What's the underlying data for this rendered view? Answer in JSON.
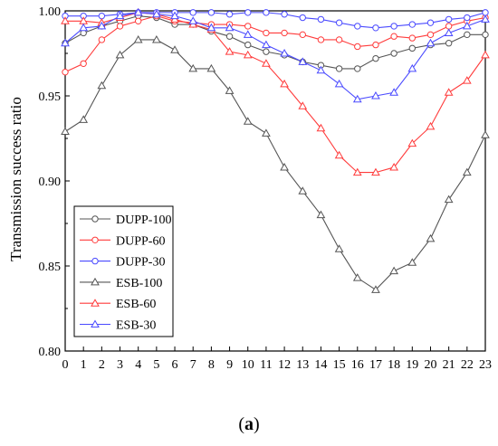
{
  "caption": {
    "open": "(",
    "letter": "a",
    "close": ")"
  },
  "chart_data": {
    "type": "line",
    "xlabel": "",
    "ylabel": "Transmission success ratio",
    "xlim": [
      0,
      23
    ],
    "ylim": [
      0.8,
      1.0
    ],
    "x": [
      0,
      1,
      2,
      3,
      4,
      5,
      6,
      7,
      8,
      9,
      10,
      11,
      12,
      13,
      14,
      15,
      16,
      17,
      18,
      19,
      20,
      21,
      22,
      23
    ],
    "x_ticks": [
      "0",
      "1",
      "2",
      "3",
      "4",
      "5",
      "6",
      "7",
      "8",
      "9",
      "10",
      "11",
      "12",
      "13",
      "14",
      "15",
      "16",
      "17",
      "18",
      "19",
      "20",
      "21",
      "22",
      "23"
    ],
    "y_ticks": [
      "0.80",
      "0.85",
      "0.90",
      "0.95",
      "1.00"
    ],
    "y_tick_values": [
      0.8,
      0.85,
      0.9,
      0.95,
      1.0
    ],
    "grid": false,
    "legend_position": "lower-left",
    "series": [
      {
        "name": "DUPP-100",
        "color": "#555555",
        "marker": "circle",
        "values": [
          0.981,
          0.987,
          0.991,
          0.994,
          0.997,
          0.996,
          0.992,
          0.992,
          0.988,
          0.985,
          0.98,
          0.976,
          0.974,
          0.97,
          0.968,
          0.966,
          0.966,
          0.972,
          0.975,
          0.978,
          0.98,
          0.981,
          0.986,
          0.986
        ]
      },
      {
        "name": "DUPP-60",
        "color": "#ff3b3b",
        "marker": "circle",
        "values": [
          0.964,
          0.969,
          0.983,
          0.991,
          0.994,
          0.997,
          0.994,
          0.993,
          0.992,
          0.992,
          0.991,
          0.987,
          0.987,
          0.986,
          0.983,
          0.983,
          0.979,
          0.98,
          0.985,
          0.984,
          0.986,
          0.991,
          0.994,
          0.996
        ]
      },
      {
        "name": "DUPP-30",
        "color": "#4a4aff",
        "marker": "circle",
        "values": [
          0.997,
          0.997,
          0.997,
          0.998,
          0.999,
          0.999,
          0.999,
          0.999,
          0.999,
          0.998,
          0.999,
          0.999,
          0.998,
          0.996,
          0.995,
          0.993,
          0.991,
          0.99,
          0.991,
          0.992,
          0.993,
          0.995,
          0.996,
          0.999
        ]
      },
      {
        "name": "ESB-100",
        "color": "#555555",
        "marker": "triangle",
        "values": [
          0.929,
          0.936,
          0.956,
          0.974,
          0.983,
          0.983,
          0.977,
          0.966,
          0.966,
          0.953,
          0.935,
          0.928,
          0.908,
          0.894,
          0.88,
          0.86,
          0.843,
          0.836,
          0.847,
          0.852,
          0.866,
          0.889,
          0.905,
          0.927
        ]
      },
      {
        "name": "ESB-60",
        "color": "#ff3b3b",
        "marker": "triangle",
        "values": [
          0.994,
          0.994,
          0.993,
          0.996,
          0.999,
          0.998,
          0.995,
          0.992,
          0.989,
          0.976,
          0.974,
          0.969,
          0.957,
          0.944,
          0.931,
          0.915,
          0.905,
          0.905,
          0.908,
          0.922,
          0.932,
          0.952,
          0.959,
          0.974
        ]
      },
      {
        "name": "ESB-30",
        "color": "#4a4aff",
        "marker": "triangle",
        "values": [
          0.981,
          0.99,
          0.991,
          0.997,
          0.999,
          0.998,
          0.997,
          0.994,
          0.99,
          0.99,
          0.986,
          0.98,
          0.975,
          0.97,
          0.965,
          0.957,
          0.948,
          0.95,
          0.952,
          0.966,
          0.981,
          0.987,
          0.991,
          0.995
        ]
      }
    ]
  }
}
